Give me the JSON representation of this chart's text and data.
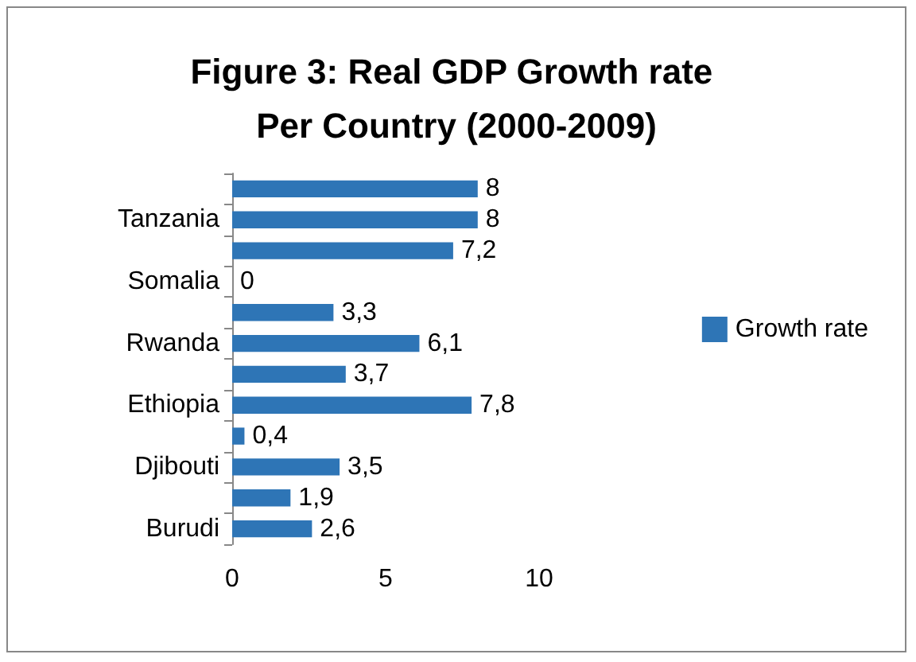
{
  "chart_data": {
    "type": "bar",
    "orientation": "horizontal",
    "title": "Figure 3: Real GDP Growth rate Per Country (2000-2009)",
    "categories": [
      null,
      "Tanzania",
      null,
      "Somalia",
      null,
      "Rwanda",
      null,
      "Ethiopia",
      null,
      "Djibouti",
      null,
      "Burudi"
    ],
    "series": [
      {
        "name": "Growth rate",
        "color": "#2e75b6",
        "values": [
          8,
          8,
          7.2,
          0,
          3.3,
          6.1,
          3.7,
          7.8,
          0.4,
          3.5,
          1.9,
          2.6
        ],
        "value_labels": [
          "8",
          "8",
          "7,2",
          "0",
          "3,3",
          "6,1",
          "3,7",
          "7,8",
          "0,4",
          "3,5",
          "1,9",
          "2,6"
        ]
      }
    ],
    "xlim": [
      0,
      10
    ],
    "xticks": [
      0,
      5,
      10
    ],
    "grid": false,
    "legend": "right"
  }
}
